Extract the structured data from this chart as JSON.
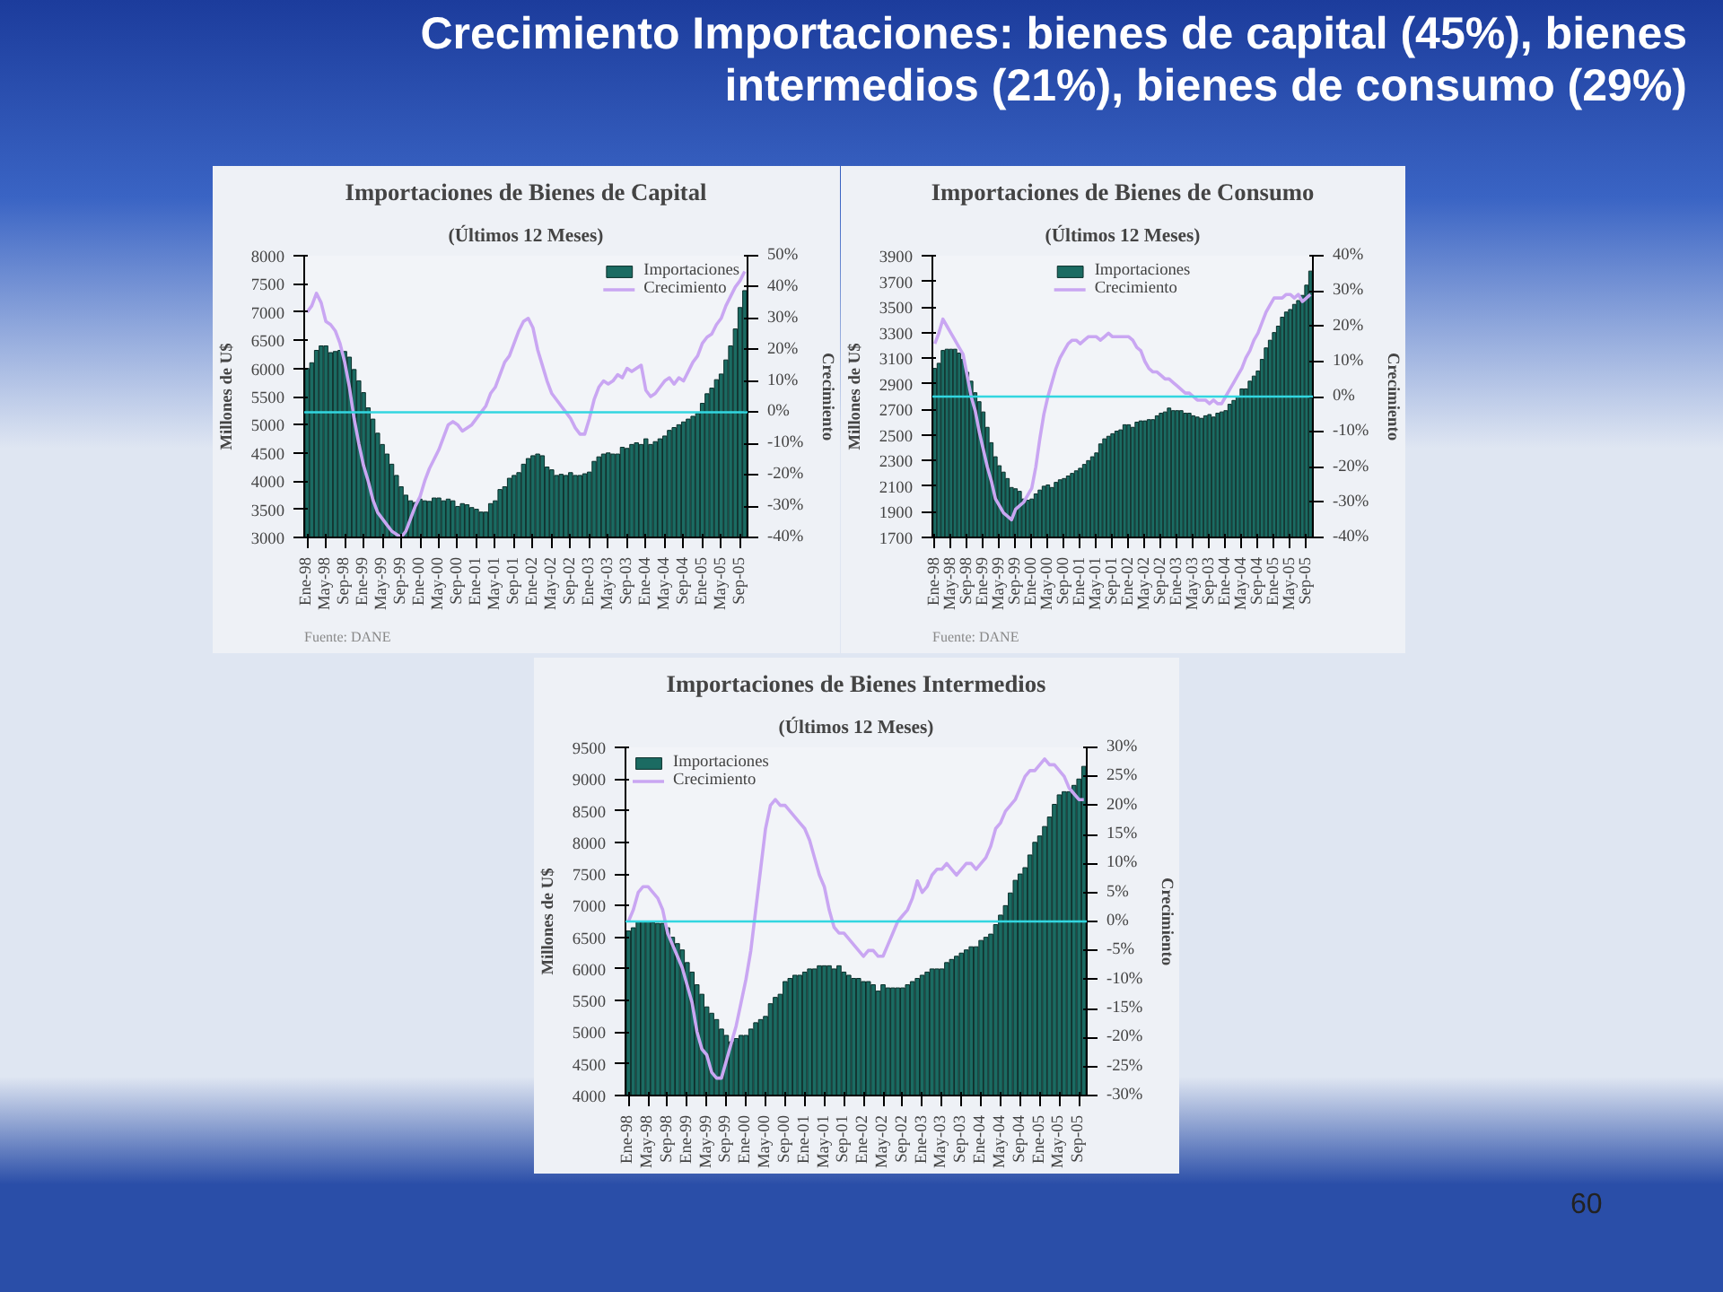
{
  "chart_data": [
    {
      "type": "other",
      "title": "Crecimiento Importaciones: bienes de capital (45%), bienes intermedios (21%), bienes de consumo (29%)",
      "annotations": [
        "60"
      ]
    },
    {
      "type": "bar",
      "title": "Importaciones de Bienes de Capital",
      "subtitle": "(Últimos 12 Meses)",
      "ylabel": "Millones de U$",
      "y2label": "Crecimiento",
      "legend": "top right",
      "annotations": [
        "Fuente: DANE"
      ],
      "categories": [
        "Ene-98",
        null,
        null,
        null,
        "May-98",
        null,
        null,
        null,
        "Sep-98",
        null,
        null,
        null,
        "Ene-99",
        null,
        null,
        null,
        "May-99",
        null,
        null,
        null,
        "Sep-99",
        null,
        null,
        null,
        "Ene-00",
        null,
        null,
        null,
        "May-00",
        null,
        null,
        null,
        "Sep-00",
        null,
        null,
        null,
        "Ene-01",
        null,
        null,
        null,
        "May-01",
        null,
        null,
        null,
        "Sep-01",
        null,
        null,
        null,
        "Ene-02",
        null,
        null,
        null,
        "May-02",
        null,
        null,
        null,
        "Sep-02",
        null,
        null,
        null,
        "Ene-03",
        null,
        null,
        null,
        "May-03",
        null,
        null,
        null,
        "Sep-03",
        null,
        null,
        null,
        "Ene-04",
        null,
        null,
        null,
        "May-04",
        null,
        null,
        null,
        "Sep-04",
        null,
        null,
        null,
        "Ene-05",
        null,
        null,
        null,
        "May-05",
        null,
        null,
        null,
        "Sep-05",
        null
      ],
      "ylim": [
        3000,
        8000
      ],
      "yticks": [
        3000,
        3500,
        4000,
        4500,
        5000,
        5500,
        6000,
        6500,
        7000,
        7500,
        8000
      ],
      "y2lim": [
        -40,
        50
      ],
      "y2ticks": [
        {
          "value": -40,
          "label": "-40%"
        },
        {
          "value": -30,
          "label": "-30%"
        },
        {
          "value": -20,
          "label": "-20%"
        },
        {
          "value": -10,
          "label": "-10%"
        },
        {
          "value": 0,
          "label": "0%"
        },
        {
          "value": 10,
          "label": "10%"
        },
        {
          "value": 20,
          "label": "20%"
        },
        {
          "value": 30,
          "label": "30%"
        },
        {
          "value": 40,
          "label": "40%"
        },
        {
          "value": 50,
          "label": "50%"
        }
      ],
      "ref_lines": [
        {
          "axis": "y2",
          "value": 0,
          "color": "#33d6e0"
        }
      ],
      "series": [
        {
          "name": "Importaciones",
          "type": "bar",
          "color": "#1b6b62",
          "values": [
            6000,
            6100,
            6320,
            6400,
            6400,
            6280,
            6300,
            6320,
            6300,
            6200,
            5980,
            5780,
            5570,
            5300,
            5100,
            4850,
            4650,
            4480,
            4300,
            4100,
            3900,
            3750,
            3650,
            3620,
            3680,
            3650,
            3640,
            3700,
            3700,
            3650,
            3680,
            3650,
            3550,
            3600,
            3580,
            3530,
            3500,
            3450,
            3450,
            3600,
            3650,
            3850,
            3900,
            4050,
            4100,
            4150,
            4300,
            4400,
            4450,
            4480,
            4450,
            4250,
            4200,
            4100,
            4120,
            4100,
            4150,
            4100,
            4100,
            4130,
            4160,
            4350,
            4430,
            4480,
            4500,
            4480,
            4480,
            4600,
            4580,
            4650,
            4680,
            4650,
            4750,
            4650,
            4700,
            4750,
            4800,
            4900,
            4950,
            5000,
            5050,
            5100,
            5150,
            5200,
            5380,
            5550,
            5650,
            5800,
            5900,
            6150,
            6400,
            6700,
            7080,
            7380
          ]
        },
        {
          "name": "Crecimiento",
          "type": "line",
          "axis": "y2",
          "color": "#c9a6f2",
          "values": [
            32,
            34,
            38,
            35,
            29,
            28,
            26,
            22,
            16,
            8,
            -2,
            -10,
            -17,
            -22,
            -28,
            -32,
            -34,
            -36,
            -38,
            -39,
            -40,
            -38,
            -34,
            -30,
            -27,
            -22,
            -18,
            -15,
            -12,
            -8,
            -4,
            -3,
            -4,
            -6,
            -5,
            -4,
            -2,
            0,
            2,
            6,
            8,
            12,
            16,
            18,
            22,
            26,
            29,
            30,
            27,
            20,
            15,
            10,
            6,
            4,
            2,
            0,
            -2,
            -5,
            -7,
            -7,
            -2,
            4,
            8,
            10,
            9,
            10,
            12,
            11,
            14,
            13,
            14,
            15,
            7,
            5,
            6,
            8,
            10,
            11,
            9,
            11,
            10,
            13,
            16,
            18,
            22,
            24,
            25,
            28,
            30,
            34,
            37,
            40,
            42,
            45
          ]
        }
      ]
    },
    {
      "type": "bar",
      "title": "Importaciones de Bienes de Consumo",
      "subtitle": "(Últimos 12 Meses)",
      "ylabel": "Millones de U$",
      "y2label": "Crecimiento",
      "legend": "top",
      "annotations": [
        "Fuente: DANE"
      ],
      "categories": [
        "Ene-98",
        null,
        null,
        null,
        "May-98",
        null,
        null,
        null,
        "Sep-98",
        null,
        null,
        null,
        "Ene-99",
        null,
        null,
        null,
        "May-99",
        null,
        null,
        null,
        "Sep-99",
        null,
        null,
        null,
        "Ene-00",
        null,
        null,
        null,
        "May-00",
        null,
        null,
        null,
        "Sep-00",
        null,
        null,
        null,
        "Ene-01",
        null,
        null,
        null,
        "May-01",
        null,
        null,
        null,
        "Sep-01",
        null,
        null,
        null,
        "Ene-02",
        null,
        null,
        null,
        "May-02",
        null,
        null,
        null,
        "Sep-02",
        null,
        null,
        null,
        "Ene-03",
        null,
        null,
        null,
        "May-03",
        null,
        null,
        null,
        "Sep-03",
        null,
        null,
        null,
        "Ene-04",
        null,
        null,
        null,
        "May-04",
        null,
        null,
        null,
        "Sep-04",
        null,
        null,
        null,
        "Ene-05",
        null,
        null,
        null,
        "May-05",
        null,
        null,
        null,
        "Sep-05",
        null
      ],
      "ylim": [
        1700,
        3900
      ],
      "yticks": [
        1700,
        1900,
        2100,
        2300,
        2500,
        2700,
        2900,
        3100,
        3300,
        3500,
        3700,
        3900
      ],
      "y2lim": [
        -40,
        40
      ],
      "y2ticks": [
        {
          "value": -40,
          "label": "-40%"
        },
        {
          "value": -30,
          "label": "-30%"
        },
        {
          "value": -20,
          "label": "-20%"
        },
        {
          "value": -10,
          "label": "-10%"
        },
        {
          "value": 0,
          "label": "0%"
        },
        {
          "value": 10,
          "label": "10%"
        },
        {
          "value": 20,
          "label": "20%"
        },
        {
          "value": 30,
          "label": "30%"
        },
        {
          "value": 40,
          "label": "40%"
        }
      ],
      "ref_lines": [
        {
          "axis": "y2",
          "value": 0,
          "color": "#33d6e0"
        }
      ],
      "series": [
        {
          "name": "Importaciones",
          "type": "bar",
          "color": "#1b6b62",
          "values": [
            3020,
            3060,
            3160,
            3170,
            3170,
            3170,
            3140,
            3090,
            2990,
            2920,
            2830,
            2760,
            2680,
            2560,
            2440,
            2330,
            2260,
            2210,
            2160,
            2090,
            2080,
            2060,
            2000,
            1990,
            2000,
            2040,
            2070,
            2100,
            2110,
            2090,
            2130,
            2150,
            2160,
            2180,
            2200,
            2220,
            2240,
            2270,
            2300,
            2330,
            2360,
            2430,
            2470,
            2490,
            2510,
            2530,
            2540,
            2580,
            2580,
            2560,
            2600,
            2610,
            2610,
            2620,
            2620,
            2650,
            2670,
            2680,
            2710,
            2690,
            2690,
            2690,
            2670,
            2670,
            2650,
            2640,
            2630,
            2650,
            2660,
            2640,
            2670,
            2680,
            2690,
            2740,
            2770,
            2800,
            2860,
            2860,
            2920,
            2960,
            3000,
            3090,
            3180,
            3240,
            3300,
            3350,
            3420,
            3460,
            3480,
            3520,
            3550,
            3590,
            3670,
            3780
          ]
        },
        {
          "name": "Crecimiento",
          "type": "line",
          "axis": "y2",
          "color": "#c9a6f2",
          "values": [
            15,
            18,
            22,
            20,
            18,
            16,
            14,
            12,
            6,
            0,
            -4,
            -10,
            -15,
            -20,
            -24,
            -29,
            -31,
            -33,
            -34,
            -35,
            -32,
            -31,
            -30,
            -28,
            -26,
            -20,
            -12,
            -5,
            0,
            4,
            8,
            11,
            13,
            15,
            16,
            16,
            15,
            16,
            17,
            17,
            17,
            16,
            17,
            18,
            17,
            17,
            17,
            17,
            17,
            16,
            14,
            13,
            10,
            8,
            7,
            7,
            6,
            5,
            5,
            4,
            3,
            2,
            1,
            1,
            0,
            -1,
            -1,
            -1,
            -2,
            -1,
            -2,
            -2,
            0,
            2,
            4,
            6,
            8,
            11,
            13,
            16,
            18,
            21,
            24,
            26,
            28,
            28,
            28,
            29,
            29,
            28,
            29,
            27,
            28,
            29
          ]
        }
      ]
    },
    {
      "type": "bar",
      "title": "Importaciones de Bienes Intermedios",
      "subtitle": "(Últimos 12 Meses)",
      "ylabel": "Millones de U$",
      "y2label": "Crecimiento",
      "legend": "top left",
      "categories": [
        "Ene-98",
        null,
        null,
        null,
        "May-98",
        null,
        null,
        null,
        "Sep-98",
        null,
        null,
        null,
        "Ene-99",
        null,
        null,
        null,
        "May-99",
        null,
        null,
        null,
        "Sep-99",
        null,
        null,
        null,
        "Ene-00",
        null,
        null,
        null,
        "May-00",
        null,
        null,
        null,
        "Sep-00",
        null,
        null,
        null,
        "Ene-01",
        null,
        null,
        null,
        "May-01",
        null,
        null,
        null,
        "Sep-01",
        null,
        null,
        null,
        "Ene-02",
        null,
        null,
        null,
        "May-02",
        null,
        null,
        null,
        "Sep-02",
        null,
        null,
        null,
        "Ene-03",
        null,
        null,
        null,
        "May-03",
        null,
        null,
        null,
        "Sep-03",
        null,
        null,
        null,
        "Ene-04",
        null,
        null,
        null,
        "May-04",
        null,
        null,
        null,
        "Sep-04",
        null,
        null,
        null,
        "Ene-05",
        null,
        null,
        null,
        "May-05",
        null,
        null,
        null,
        "Sep-05",
        null
      ],
      "ylim": [
        4000,
        9500
      ],
      "yticks": [
        4000,
        4500,
        5000,
        5500,
        6000,
        6500,
        7000,
        7500,
        8000,
        8500,
        9000,
        9500
      ],
      "y2lim": [
        -30,
        30
      ],
      "y2ticks": [
        {
          "value": -30,
          "label": "-30%"
        },
        {
          "value": -25,
          "label": "-25%"
        },
        {
          "value": -20,
          "label": "-20%"
        },
        {
          "value": -15,
          "label": "-15%"
        },
        {
          "value": -10,
          "label": "-10%"
        },
        {
          "value": -5,
          "label": "-5%"
        },
        {
          "value": 0,
          "label": "0%"
        },
        {
          "value": 5,
          "label": "5%"
        },
        {
          "value": 10,
          "label": "10%"
        },
        {
          "value": 15,
          "label": "15%"
        },
        {
          "value": 20,
          "label": "20%"
        },
        {
          "value": 25,
          "label": "25%"
        },
        {
          "value": 30,
          "label": "30%"
        }
      ],
      "ref_lines": [
        {
          "axis": "y2",
          "value": 0,
          "color": "#33d6e0"
        }
      ],
      "series": [
        {
          "name": "Importaciones",
          "type": "bar",
          "color": "#1b6b62",
          "values": [
            6600,
            6650,
            6750,
            6750,
            6750,
            6730,
            6720,
            6720,
            6650,
            6500,
            6400,
            6300,
            6100,
            5950,
            5750,
            5600,
            5400,
            5300,
            5200,
            5050,
            4950,
            4850,
            4900,
            4950,
            4950,
            5050,
            5150,
            5200,
            5250,
            5450,
            5550,
            5600,
            5800,
            5850,
            5900,
            5900,
            5950,
            6000,
            6000,
            6050,
            6050,
            6050,
            6000,
            6050,
            5950,
            5900,
            5850,
            5850,
            5800,
            5800,
            5750,
            5650,
            5750,
            5700,
            5700,
            5700,
            5700,
            5750,
            5800,
            5850,
            5900,
            5950,
            6000,
            6000,
            6000,
            6100,
            6150,
            6200,
            6250,
            6300,
            6350,
            6350,
            6450,
            6500,
            6550,
            6700,
            6850,
            7000,
            7200,
            7400,
            7500,
            7600,
            7800,
            8000,
            8100,
            8250,
            8400,
            8600,
            8750,
            8800,
            8800,
            8900,
            9000,
            9200
          ]
        },
        {
          "name": "Crecimiento",
          "type": "line",
          "axis": "y2",
          "color": "#c9a6f2",
          "values": [
            0,
            2,
            5,
            6,
            6,
            5,
            4,
            2,
            -2,
            -4,
            -6,
            -8,
            -11,
            -14,
            -19,
            -22,
            -23,
            -26,
            -27,
            -27,
            -24,
            -21,
            -18,
            -14,
            -10,
            -5,
            2,
            9,
            16,
            20,
            21,
            20,
            20,
            19,
            18,
            17,
            16,
            14,
            11,
            8,
            6,
            2,
            -1,
            -2,
            -2,
            -3,
            -4,
            -5,
            -6,
            -5,
            -5,
            -6,
            -6,
            -4,
            -2,
            0,
            1,
            2,
            4,
            7,
            5,
            6,
            8,
            9,
            9,
            10,
            9,
            8,
            9,
            10,
            10,
            9,
            10,
            11,
            13,
            16,
            17,
            19,
            20,
            21,
            23,
            25,
            26,
            26,
            27,
            28,
            27,
            27,
            26,
            25,
            23,
            22,
            21,
            21
          ]
        }
      ]
    }
  ]
}
